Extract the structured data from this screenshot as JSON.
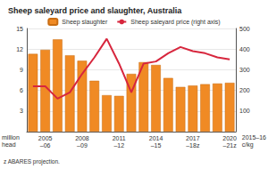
{
  "chart_data": {
    "type": "bar",
    "title": "Sheep saleyard price and slaughter, Australia",
    "categories": [
      null,
      "2005\n–06",
      null,
      null,
      "2008\n–09",
      null,
      null,
      "2011\n–12",
      null,
      null,
      "2014\n–15",
      null,
      null,
      "2017\n–18z",
      null,
      null,
      "2020\n–21z"
    ],
    "series": [
      {
        "name": "Sheep slaughter",
        "type": "bar",
        "color": "#f08a24",
        "values": [
          11.3,
          11.9,
          13.4,
          11.1,
          10.3,
          7.4,
          5.3,
          5.2,
          8.4,
          10.1,
          9.7,
          7.8,
          6.5,
          6.7,
          6.9,
          7.0,
          7.1
        ]
      },
      {
        "name": "Sheep saleyard price (right axis)",
        "type": "line",
        "axis": "y2",
        "color": "#d7263d",
        "values": [
          220,
          220,
          160,
          190,
          280,
          360,
          450,
          330,
          190,
          330,
          340,
          380,
          410,
          390,
          380,
          360,
          350
        ]
      }
    ],
    "ylim": [
      0,
      15
    ],
    "yticks": [
      3,
      6,
      9,
      12,
      15
    ],
    "y2lim": [
      0,
      500
    ],
    "y2ticks": [
      100,
      200,
      300,
      400,
      500
    ],
    "ylabel": "million\nhead",
    "y2label": "2015–16\nc/kg",
    "footnote": "z ABARES projection.",
    "grid": true,
    "legend": "top"
  }
}
